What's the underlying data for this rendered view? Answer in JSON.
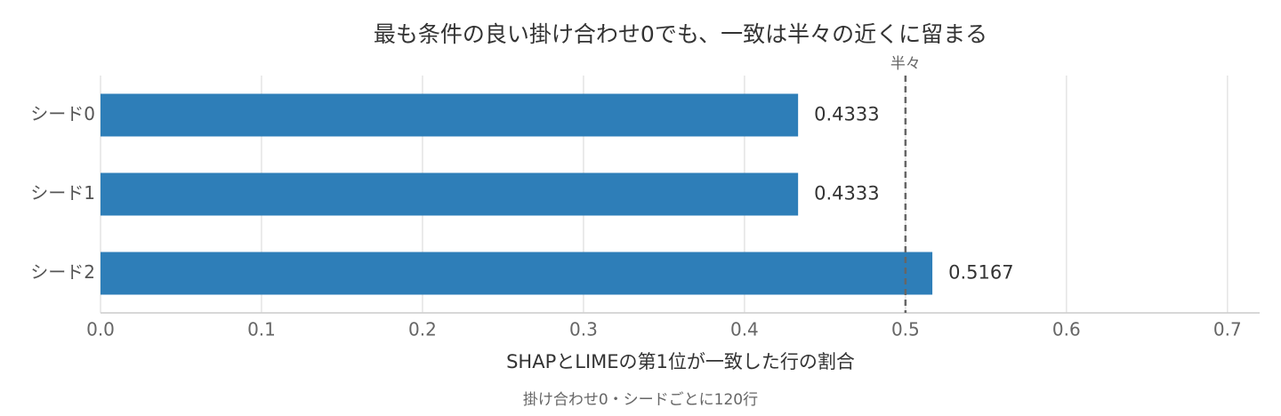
{
  "chart_data": {
    "type": "hbar",
    "title": "最も条件の良い掛け合わせ0でも、一致は半々の近くに留まる",
    "x_label": "SHAPとLIMEの第1位が一致した行の割合",
    "note": "掛け合わせ0・シードごとに120行",
    "categories": [
      "シード0",
      "シード1",
      "シード2"
    ],
    "values": [
      0.4333,
      0.4333,
      0.5167
    ],
    "color": "#2e7eb8",
    "xlim": [
      0,
      0.72
    ],
    "xticks": [
      {
        "value": 0,
        "label": "0.0"
      },
      0.1,
      0.2,
      0.3,
      0.4,
      0.5,
      0.6,
      0.7
    ],
    "grid": true,
    "reference_line": {
      "value": 0.5,
      "label": "半々"
    }
  }
}
